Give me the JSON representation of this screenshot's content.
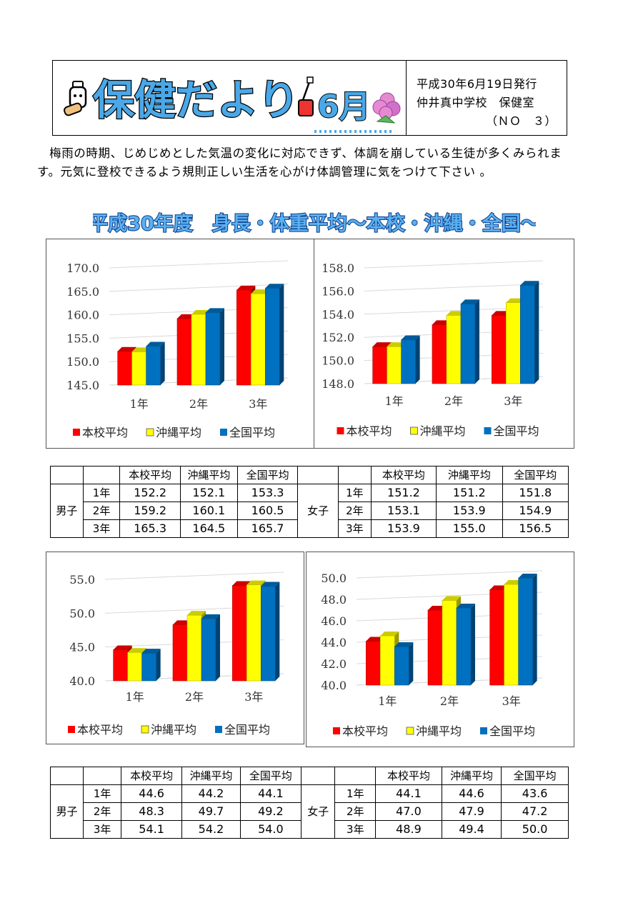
{
  "header": {
    "title_art": "保健だより",
    "month": "6月",
    "issue_date": "平成30年6月19日発行",
    "school": "仲井真中学校　保健室",
    "number": "（ＮＯ　３）"
  },
  "intro": {
    "text": "　梅雨の時期、じめじめとした気温の変化に対応できず、体調を崩している生徒が多くみられます。元気に登校できるよう規則正しい生活を心がけ体調管理に気をつけて下さい 。"
  },
  "headline": "平成30年度　身長・体重平均～本校・沖縄・全国～",
  "colors": {
    "school": "#ff0000",
    "okinawa": "#ffff00",
    "national": "#0070c0"
  },
  "legend": [
    "本校平均",
    "沖縄平均",
    "全国平均"
  ],
  "chart_data": [
    {
      "type": "bar",
      "categories": [
        "1年",
        "2年",
        "3年"
      ],
      "ylim": [
        145,
        170
      ],
      "yticks": [
        "145.0",
        "150.0",
        "155.0",
        "160.0",
        "165.0",
        "170.0"
      ],
      "series": [
        {
          "name": "本校平均",
          "values": [
            152.2,
            159.2,
            165.3
          ]
        },
        {
          "name": "沖縄平均",
          "values": [
            152.1,
            160.1,
            164.5
          ]
        },
        {
          "name": "全国平均",
          "values": [
            153.3,
            160.5,
            165.7
          ]
        }
      ]
    },
    {
      "type": "bar",
      "categories": [
        "1年",
        "2年",
        "3年"
      ],
      "ylim": [
        148,
        158
      ],
      "yticks": [
        "148.0",
        "150.0",
        "152.0",
        "154.0",
        "156.0",
        "158.0"
      ],
      "series": [
        {
          "name": "本校平均",
          "values": [
            151.2,
            153.1,
            153.9
          ]
        },
        {
          "name": "沖縄平均",
          "values": [
            151.2,
            153.9,
            155.0
          ]
        },
        {
          "name": "全国平均",
          "values": [
            151.8,
            154.9,
            156.5
          ]
        }
      ]
    },
    {
      "type": "bar",
      "categories": [
        "1年",
        "2年",
        "3年"
      ],
      "ylim": [
        40,
        55
      ],
      "yticks": [
        "40.0",
        "45.0",
        "50.0",
        "55.0"
      ],
      "series": [
        {
          "name": "本校平均",
          "values": [
            44.6,
            48.3,
            54.1
          ]
        },
        {
          "name": "沖縄平均",
          "values": [
            44.2,
            49.7,
            54.2
          ]
        },
        {
          "name": "全国平均",
          "values": [
            44.1,
            49.2,
            54.0
          ]
        }
      ]
    },
    {
      "type": "bar",
      "categories": [
        "1年",
        "2年",
        "3年"
      ],
      "ylim": [
        40,
        50
      ],
      "yticks": [
        "40.0",
        "42.0",
        "44.0",
        "46.0",
        "48.0",
        "50.0"
      ],
      "series": [
        {
          "name": "本校平均",
          "values": [
            44.1,
            47.0,
            48.9
          ]
        },
        {
          "name": "沖縄平均",
          "values": [
            44.6,
            47.9,
            49.4
          ]
        },
        {
          "name": "全国平均",
          "values": [
            43.6,
            47.2,
            50.0
          ]
        }
      ]
    }
  ],
  "tables": [
    {
      "headers": [
        "本校平均",
        "沖縄平均",
        "全国平均"
      ],
      "boys_label": "男子",
      "girls_label": "女子",
      "grades": [
        "1年",
        "2年",
        "3年"
      ],
      "boys": [
        [
          "152.2",
          "152.1",
          "153.3"
        ],
        [
          "159.2",
          "160.1",
          "160.5"
        ],
        [
          "165.3",
          "164.5",
          "165.7"
        ]
      ],
      "girls": [
        [
          "151.2",
          "151.2",
          "151.8"
        ],
        [
          "153.1",
          "153.9",
          "154.9"
        ],
        [
          "153.9",
          "155.0",
          "156.5"
        ]
      ]
    },
    {
      "headers": [
        "本校平均",
        "沖縄平均",
        "全国平均"
      ],
      "boys_label": "男子",
      "girls_label": "女子",
      "grades": [
        "1年",
        "2年",
        "3年"
      ],
      "boys": [
        [
          "44.6",
          "44.2",
          "44.1"
        ],
        [
          "48.3",
          "49.7",
          "49.2"
        ],
        [
          "54.1",
          "54.2",
          "54.0"
        ]
      ],
      "girls": [
        [
          "44.1",
          "44.6",
          "43.6"
        ],
        [
          "47.0",
          "47.9",
          "47.2"
        ],
        [
          "48.9",
          "49.4",
          "50.0"
        ]
      ]
    }
  ]
}
